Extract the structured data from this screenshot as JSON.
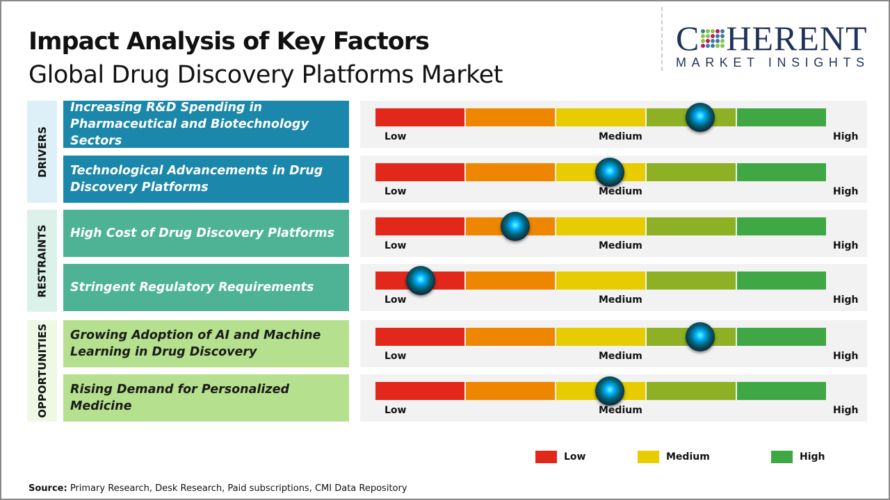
{
  "title": "Impact Analysis of Key Factors",
  "subtitle": "Global Drug Discovery Platforms Market",
  "logo": {
    "main": "COHERENT",
    "sub": "MARKET INSIGHTS"
  },
  "colors": {
    "low": "#e2281b",
    "low_mid": "#ef8600",
    "medium": "#e6cc00",
    "mid_high": "#8db025",
    "high": "#3fa744",
    "drivers": "#1b87ab",
    "restraints": "#4db394",
    "opportunities": "#b5e08d"
  },
  "chart_data": {
    "type": "gauge",
    "scale_labels": [
      "Low",
      "Medium",
      "High"
    ],
    "categories": [
      {
        "name": "DRIVERS",
        "color": "#1b87ab",
        "label_bg": "#ddeff7",
        "factors": [
          {
            "label": "Increasing R&D Spending in Pharmaceutical and Biotechnology Sectors",
            "impact": 0.72
          },
          {
            "label": "Technological Advancements in Drug Discovery Platforms",
            "impact": 0.52
          }
        ]
      },
      {
        "name": "RESTRAINTS",
        "color": "#4db394",
        "label_bg": "#dcf1ea",
        "factors": [
          {
            "label": "High Cost of Drug Discovery Platforms",
            "impact": 0.31
          },
          {
            "label": "Stringent Regulatory Requirements",
            "impact": 0.1
          }
        ]
      },
      {
        "name": "OPPORTUNITIES",
        "color": "#b5e08d",
        "label_bg": "#eef8e4",
        "factors": [
          {
            "label": "Growing Adoption of AI and Machine Learning in Drug Discovery",
            "impact": 0.72
          },
          {
            "label": "Rising Demand for Personalized Medicine",
            "impact": 0.52
          }
        ]
      }
    ],
    "legend": [
      {
        "label": "Low",
        "color": "#e2281b"
      },
      {
        "label": "Medium",
        "color": "#e6cc00"
      },
      {
        "label": "High",
        "color": "#3fa744"
      }
    ]
  },
  "source": {
    "label": "Source:",
    "text": " Primary Research, Desk Research, Paid subscriptions, CMI Data Repository"
  }
}
